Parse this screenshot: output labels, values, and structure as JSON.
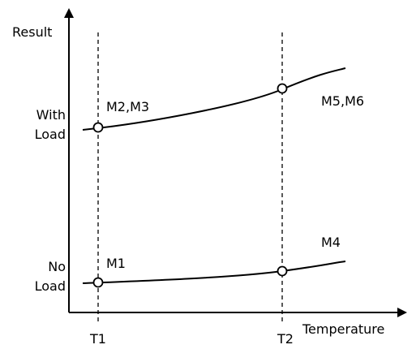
{
  "axes": {
    "y_label": "Result",
    "x_label": "Temperature"
  },
  "y_ticks": {
    "with_load": [
      "With",
      "Load"
    ],
    "no_load": [
      "No",
      "Load"
    ]
  },
  "x_ticks": {
    "t1": "T1",
    "t2": "T2"
  },
  "curves": {
    "with_load": {
      "label_t1": "M2,M3",
      "label_t2": "M5,M6"
    },
    "no_load": {
      "label_t1": "M1",
      "label_t2": "M4"
    }
  }
}
